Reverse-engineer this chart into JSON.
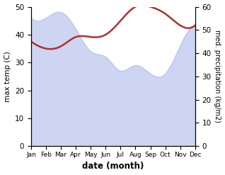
{
  "months": [
    "Jan",
    "Feb",
    "Mar",
    "Apr",
    "May",
    "Jun",
    "Jul",
    "Aug",
    "Sep",
    "Oct",
    "Nov",
    "Dec"
  ],
  "temp": [
    46,
    46,
    48,
    42,
    34,
    32,
    27,
    29,
    26,
    26,
    36,
    43
  ],
  "precip": [
    45,
    42,
    43,
    47,
    47,
    48,
    54,
    60,
    60,
    57,
    52,
    52
  ],
  "temp_fill_color": "#b8c4ee",
  "precip_color": "#b03030",
  "ylabel_left": "max temp (C)",
  "ylabel_right": "med. precipitation (kg/m2)",
  "xlabel": "date (month)",
  "ylim_left": [
    0,
    50
  ],
  "ylim_right": [
    0,
    60
  ],
  "yticks_left": [
    0,
    10,
    20,
    30,
    40,
    50
  ],
  "yticks_right": [
    0,
    10,
    20,
    30,
    40,
    50,
    60
  ]
}
